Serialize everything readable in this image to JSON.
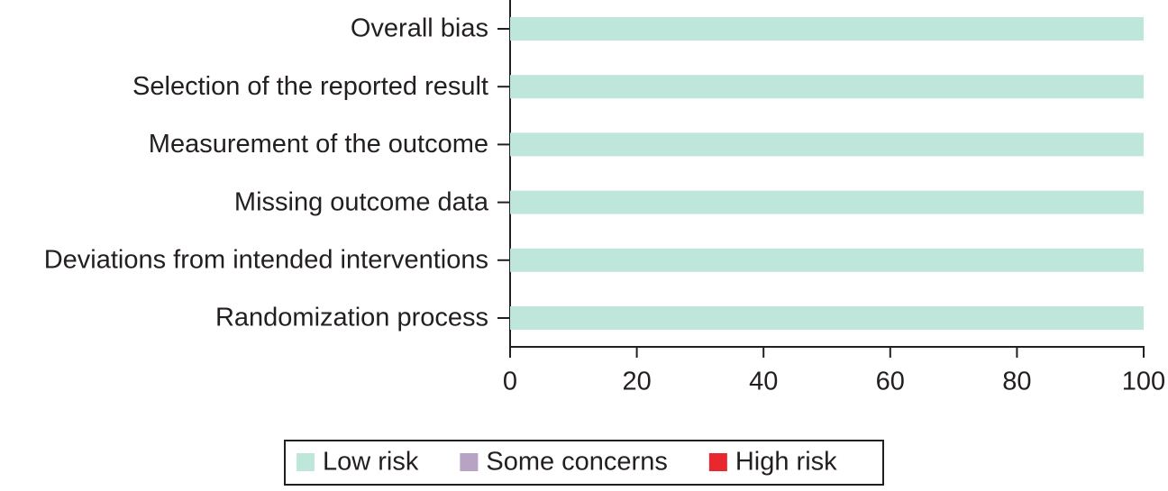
{
  "chart_data": {
    "type": "stacked-barh",
    "categories": [
      "Overall bias",
      "Selection of the reported result",
      "Measurement of the outcome",
      "Missing outcome data",
      "Deviations from intended interventions",
      "Randomization process"
    ],
    "series": [
      {
        "name": "Low risk",
        "color": "#bfe6db",
        "values": [
          100,
          100,
          100,
          100,
          100,
          100
        ]
      },
      {
        "name": "Some concerns",
        "color": "#b7a3c4",
        "values": [
          0,
          0,
          0,
          0,
          0,
          0
        ]
      },
      {
        "name": "High risk",
        "color": "#e8272e",
        "values": [
          0,
          0,
          0,
          0,
          0,
          0
        ]
      }
    ],
    "xlim": [
      0,
      100
    ],
    "xticks": [
      0,
      20,
      40,
      60,
      80,
      100
    ],
    "legend": "bottom"
  }
}
